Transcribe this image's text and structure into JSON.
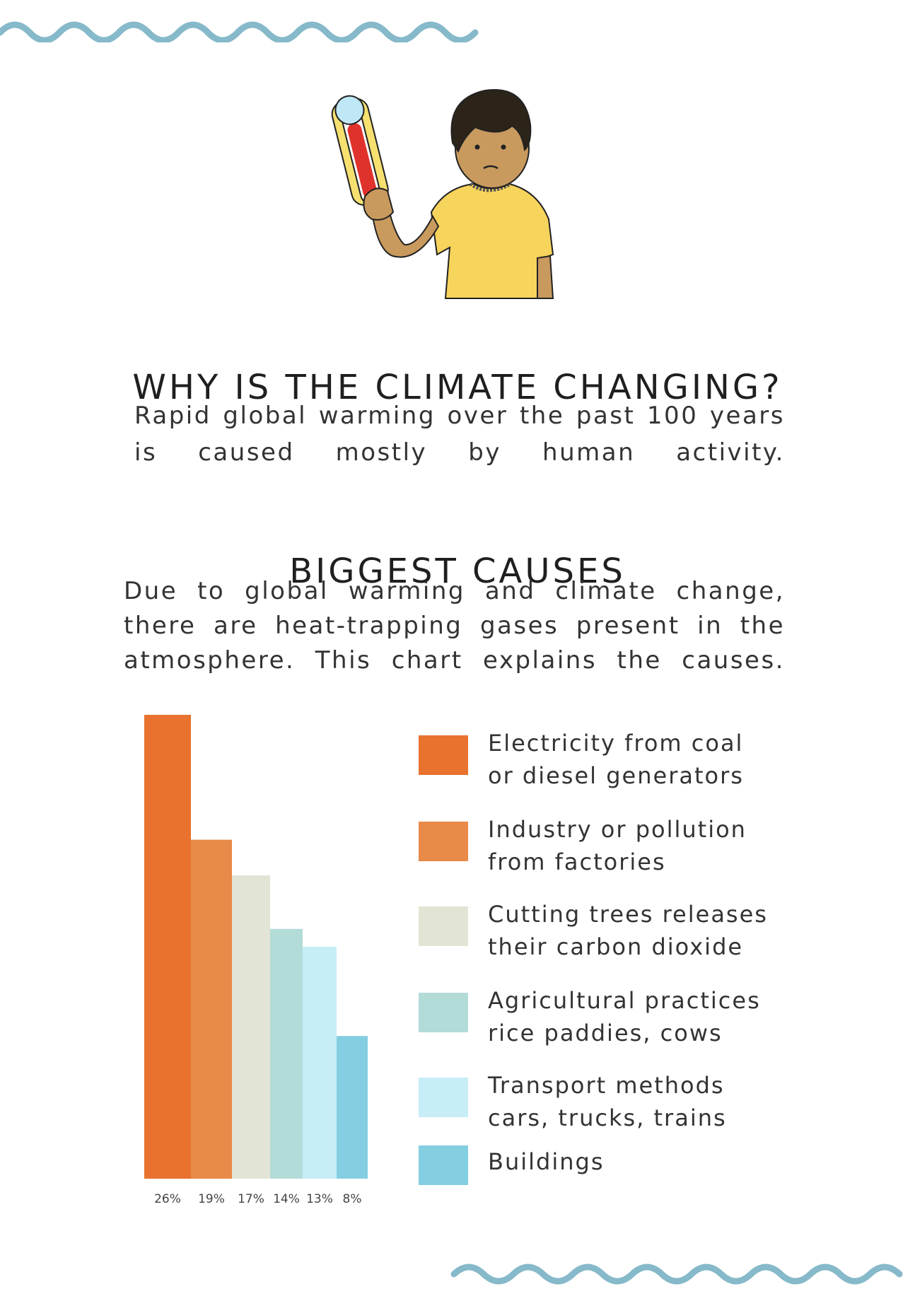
{
  "header": {
    "title": "WHY IS THE CLIMATE CHANGING?",
    "intro_lines": [
      "Rapid global warming over the past 100 years",
      "is caused mostly by human activity."
    ]
  },
  "section": {
    "title": "BIGGEST CAUSES",
    "text_lines": [
      "Due to global warming and climate change,",
      "there are heat-trapping gases present in the",
      "atmosphere. This chart explains the causes."
    ]
  },
  "colors": {
    "wave": "#86b9c9",
    "text": "#2b2b2b",
    "bar_colors": [
      "#e8722e",
      "#e88a48",
      "#e2e5d5",
      "#b3dbd8",
      "#c7edf7",
      "#84cee2"
    ]
  },
  "chart_data": {
    "type": "bar",
    "title": "",
    "xlabel": "",
    "ylabel": "",
    "categories": [
      "Electricity from coal or diesel generators",
      "Industry or pollution from factories",
      "Cutting trees releases their carbon dioxide",
      "Agricultural practices rice paddies, cows",
      "Transport methods cars, trucks, trains",
      "Buildings"
    ],
    "values": [
      26,
      19,
      17,
      14,
      13,
      8
    ],
    "value_labels": [
      "26%",
      "19%",
      "17%",
      "14%",
      "13%",
      "8%"
    ],
    "ylim": [
      0,
      26
    ],
    "grid": false,
    "legend": {
      "position": "right",
      "entries": [
        {
          "lines": [
            "Electricity from coal",
            "or diesel generators"
          ]
        },
        {
          "lines": [
            "Industry or pollution",
            "from factories"
          ]
        },
        {
          "lines": [
            "Cutting trees releases",
            "their carbon dioxide"
          ]
        },
        {
          "lines": [
            "Agricultural practices",
            "rice paddies, cows"
          ]
        },
        {
          "lines": [
            "Transport methods",
            "cars, trucks, trains"
          ]
        },
        {
          "lines": [
            "Buildings"
          ]
        }
      ]
    }
  }
}
